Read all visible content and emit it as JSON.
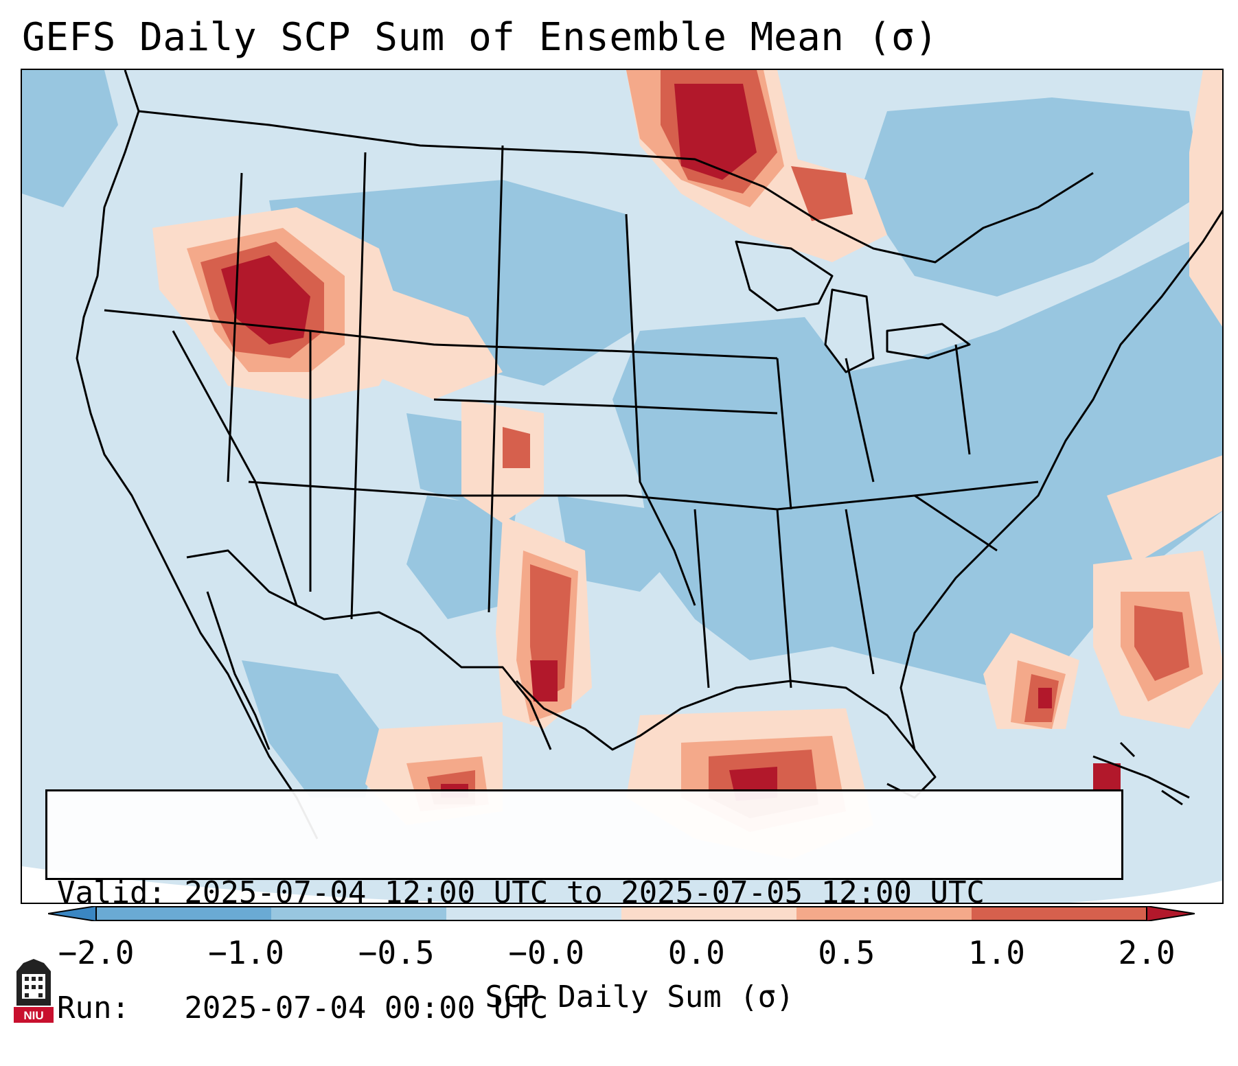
{
  "title": "GEFS Daily SCP Sum of Ensemble Mean (σ)",
  "info": {
    "valid": "Valid: 2025-07-04 12:00 UTC to 2025-07-05 12:00 UTC",
    "run": "Run:   2025-07-04 00:00 UTC"
  },
  "colorbar": {
    "label": "SCP Daily Sum (σ)",
    "ticks": [
      "−2.0",
      "−1.0",
      "−0.5",
      "−0.0",
      "0.0",
      "0.5",
      "1.0",
      "2.0"
    ],
    "colors": [
      "#3a86c2",
      "#6aaad4",
      "#98c6e0",
      "#d2e5f0",
      "#fbdcca",
      "#f4a98a",
      "#d6604d",
      "#b2182b"
    ]
  },
  "legend_colors": {
    "ocean_base": "#d2e5f0",
    "land_base": "#98c6e0",
    "outline": "#000000"
  },
  "logo": {
    "text": "NIU",
    "color": "#c8102e"
  }
}
